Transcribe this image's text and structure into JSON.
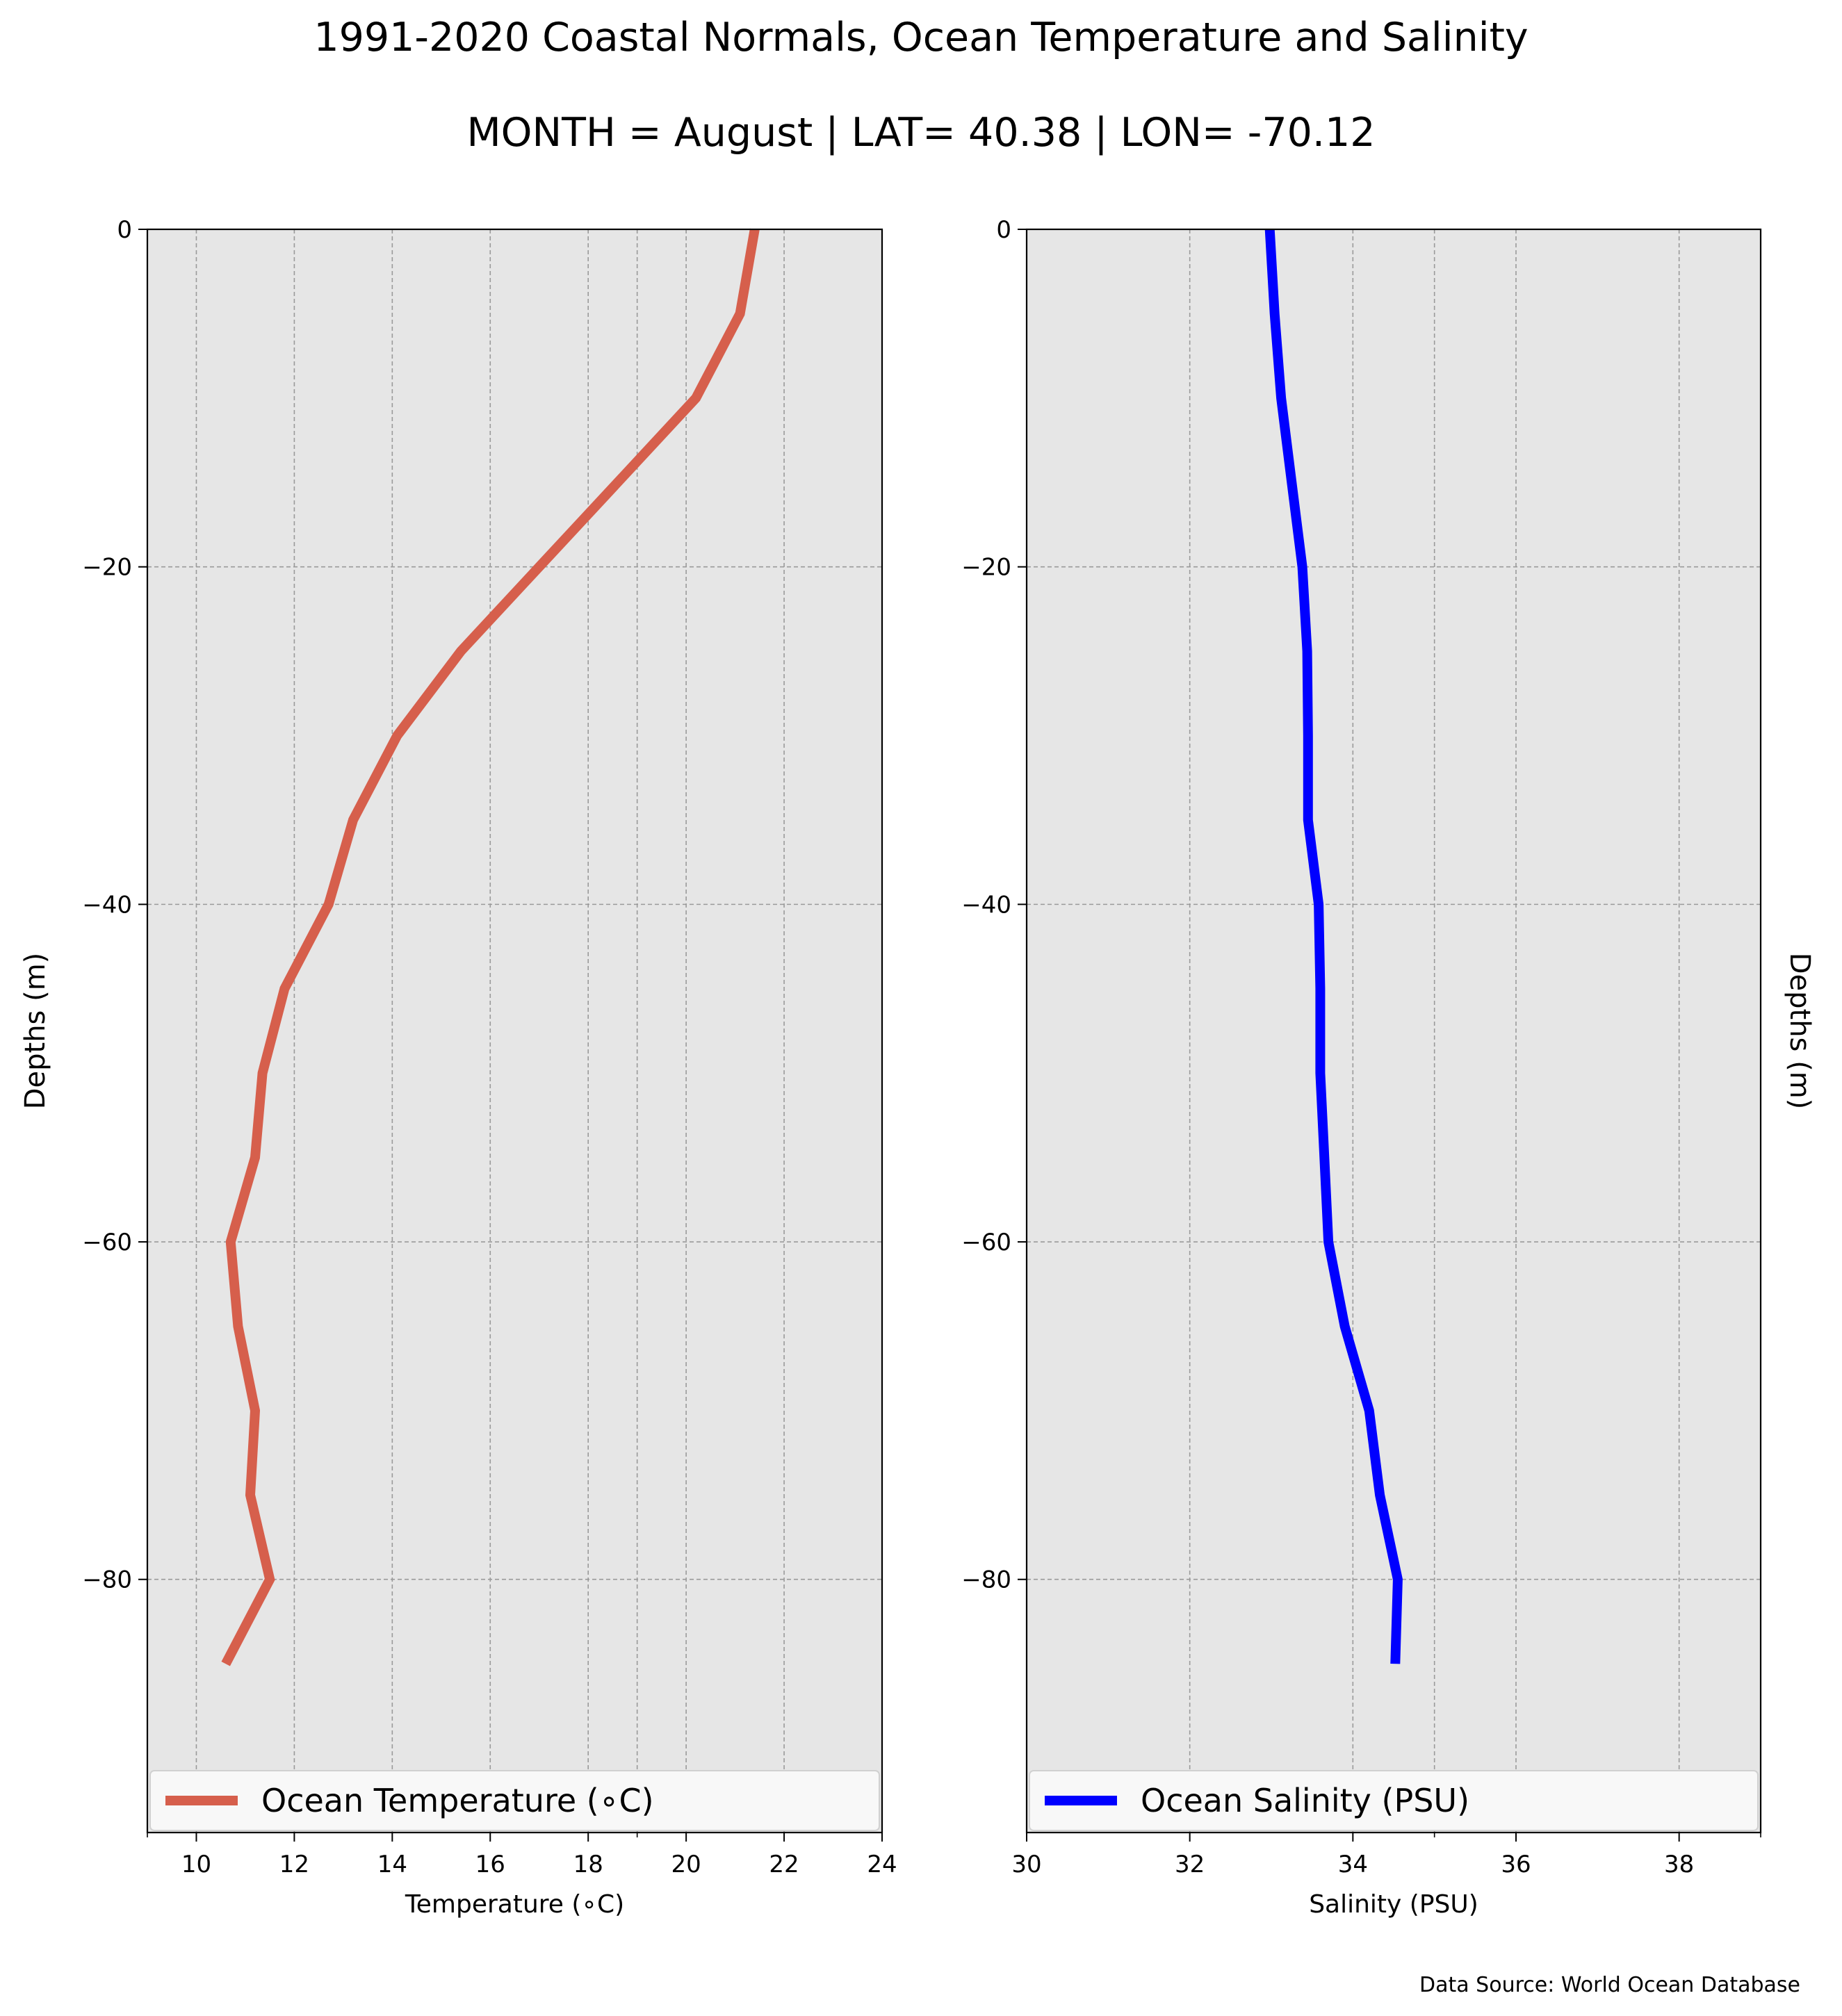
{
  "title": "1991-2020 Coastal Normals, Ocean Temperature and Salinity",
  "subtitle": "MONTH = August | LAT= 40.38 | LON= -70.12",
  "source_note": "Data Source: World Ocean Database",
  "colors": {
    "background": "#ffffff",
    "plot_background": "#e6e6e6",
    "grid": "#9a9a9a",
    "temperature_line": "#d65f4c",
    "salinity_line": "#0000ff"
  },
  "chart_data": [
    {
      "type": "line",
      "ylabel": "Depths (m)",
      "xlabel": "Temperature (∘C)",
      "xlim": [
        9,
        24
      ],
      "ylim": [
        -95,
        0
      ],
      "x_ticks": [
        10,
        12,
        14,
        16,
        18,
        20,
        22,
        24
      ],
      "x_minor_ticks": [
        9,
        19
      ],
      "y_ticks": [
        0,
        -20,
        -40,
        -60,
        -80
      ],
      "y_tick_labels": [
        "0",
        "−20",
        "−40",
        "−60",
        "−80"
      ],
      "grid": true,
      "legend_position": "bottom",
      "series": [
        {
          "name": "Ocean Temperature (∘C)",
          "color": "#d65f4c",
          "x": [
            21.4,
            21.1,
            20.2,
            18.6,
            17.0,
            15.4,
            14.1,
            13.2,
            12.7,
            11.8,
            11.35,
            11.2,
            10.7,
            10.85,
            11.2,
            11.1,
            11.5,
            10.6
          ],
          "y": [
            0,
            -5,
            -10,
            -15,
            -20,
            -25,
            -30,
            -35,
            -40,
            -45,
            -50,
            -55,
            -60,
            -65,
            -70,
            -75,
            -80,
            -85
          ]
        }
      ]
    },
    {
      "type": "line",
      "ylabel": "Depths (m)",
      "xlabel": "Salinity (PSU)",
      "xlim": [
        30,
        39
      ],
      "ylim": [
        -95,
        0
      ],
      "x_ticks": [
        30,
        32,
        34,
        36,
        38
      ],
      "x_minor_ticks": [
        35,
        39
      ],
      "y_ticks": [
        0,
        -20,
        -40,
        -60,
        -80
      ],
      "y_tick_labels": [
        "0",
        "−20",
        "−40",
        "−60",
        "−80"
      ],
      "grid": true,
      "legend_position": "bottom",
      "series": [
        {
          "name": "Ocean Salinity (PSU)",
          "color": "#0000ff",
          "x": [
            32.98,
            33.04,
            33.12,
            33.25,
            33.38,
            33.44,
            33.45,
            33.45,
            33.58,
            33.6,
            33.6,
            33.65,
            33.7,
            33.9,
            34.2,
            34.33,
            34.55,
            34.52
          ],
          "y": [
            0,
            -5,
            -10,
            -15,
            -20,
            -25,
            -30,
            -35,
            -40,
            -45,
            -50,
            -55,
            -60,
            -65,
            -70,
            -75,
            -80,
            -85
          ]
        }
      ]
    }
  ]
}
